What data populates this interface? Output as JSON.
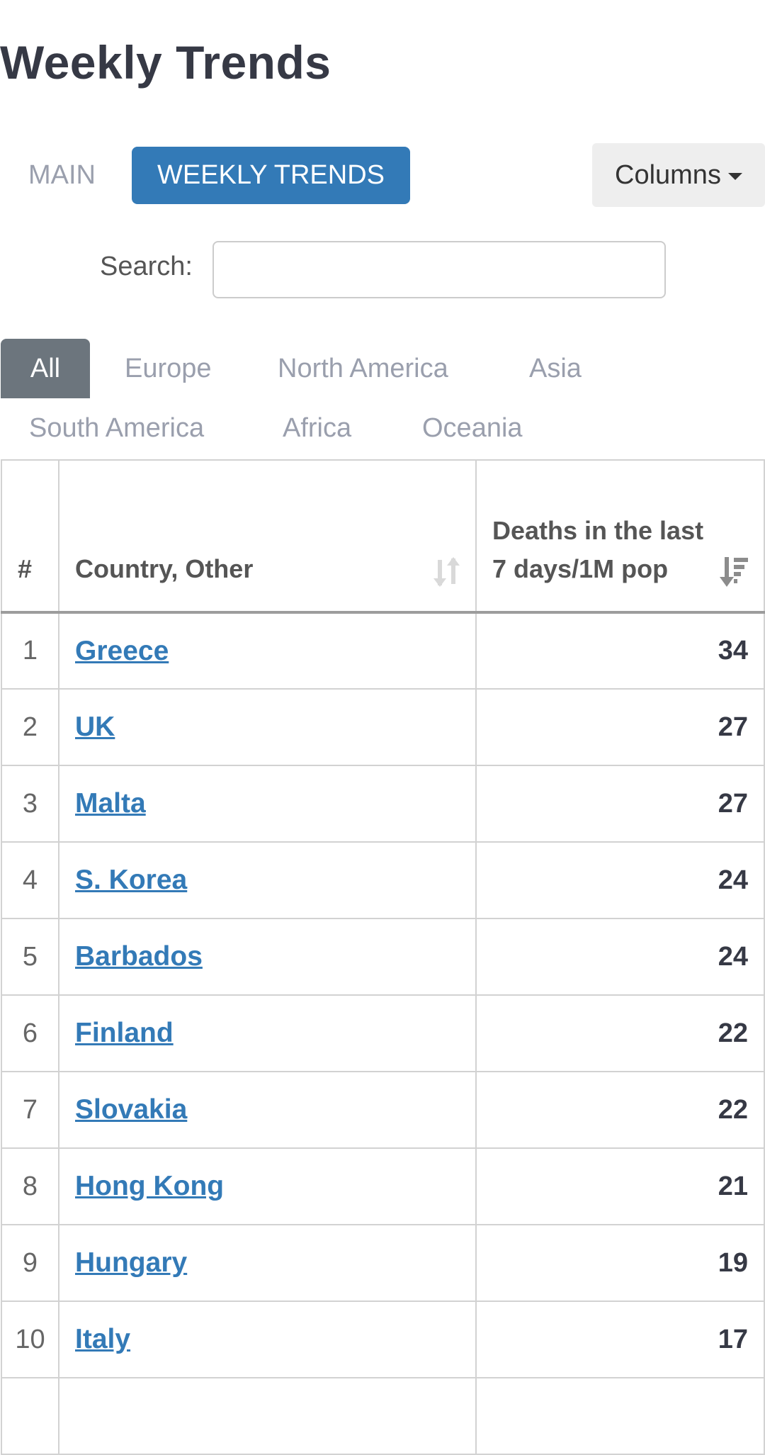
{
  "page": {
    "title": "Weekly Trends"
  },
  "tabs": {
    "main_label": "MAIN",
    "weekly_label": "WEEKLY TRENDS",
    "columns_label": "Columns"
  },
  "search": {
    "label": "Search:",
    "value": "",
    "placeholder": ""
  },
  "regions": [
    "All",
    "Europe",
    "North America",
    "Asia",
    "South America",
    "Africa",
    "Oceania"
  ],
  "active_region": "All",
  "table": {
    "headers": {
      "rank": "#",
      "country": "Country, Other",
      "deaths": "Deaths in the last 7 days/1M pop"
    },
    "rows": [
      {
        "rank": "1",
        "country": "Greece",
        "deaths": "34"
      },
      {
        "rank": "2",
        "country": "UK",
        "deaths": "27"
      },
      {
        "rank": "3",
        "country": "Malta",
        "deaths": "27"
      },
      {
        "rank": "4",
        "country": "S. Korea",
        "deaths": "24"
      },
      {
        "rank": "5",
        "country": "Barbados",
        "deaths": "24"
      },
      {
        "rank": "6",
        "country": "Finland",
        "deaths": "22"
      },
      {
        "rank": "7",
        "country": "Slovakia",
        "deaths": "22"
      },
      {
        "rank": "8",
        "country": "Hong Kong",
        "deaths": "21"
      },
      {
        "rank": "9",
        "country": "Hungary",
        "deaths": "19"
      },
      {
        "rank": "10",
        "country": "Italy",
        "deaths": "17"
      },
      {
        "rank": "",
        "country": "",
        "deaths": ""
      }
    ]
  },
  "colors": {
    "accent": "#337ab7",
    "active_region_bg": "#6c757d",
    "title": "#363945",
    "muted": "#9a9fad"
  }
}
